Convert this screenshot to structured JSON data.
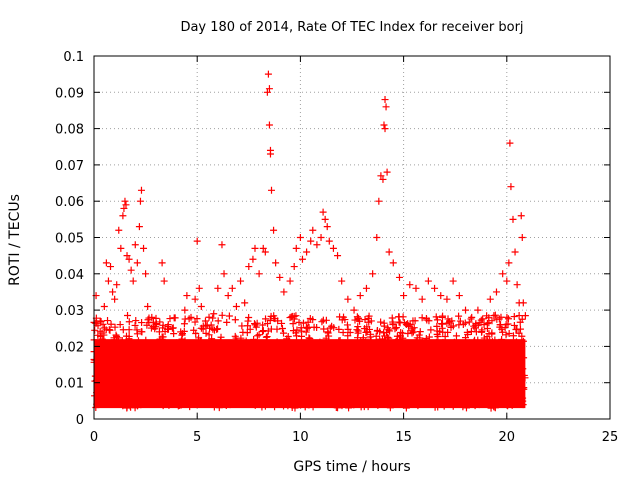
{
  "chart_data": {
    "type": "scatter",
    "title": "Day 180 of 2014, Rate Of TEC Index for receiver borj",
    "xlabel": "GPS time / hours",
    "ylabel": "ROTI / TECUs",
    "xlim": [
      0,
      25
    ],
    "ylim": [
      0,
      0.1
    ],
    "x_ticks": [
      0,
      5,
      10,
      15,
      20,
      25
    ],
    "x_tick_labels": [
      "0",
      "5",
      "10",
      "15",
      "20",
      "25"
    ],
    "y_ticks": [
      0,
      0.01,
      0.02,
      0.03,
      0.04,
      0.05,
      0.06,
      0.07,
      0.08,
      0.09,
      0.1
    ],
    "y_tick_labels": [
      "0",
      "0.01",
      "0.02",
      "0.03",
      "0.04",
      "0.05",
      "0.06",
      "0.07",
      "0.08",
      "0.09",
      "0.1"
    ],
    "grid": true,
    "marker": "+",
    "marker_color": "#ff0000",
    "series": [
      {
        "name": "ROTI",
        "points": [
          [
            0.1,
            0.034
          ],
          [
            0.15,
            0.012
          ],
          [
            0.2,
            0.018
          ],
          [
            0.3,
            0.027
          ],
          [
            0.4,
            0.022
          ],
          [
            0.5,
            0.031
          ],
          [
            0.6,
            0.043
          ],
          [
            0.7,
            0.038
          ],
          [
            0.8,
            0.042
          ],
          [
            0.9,
            0.035
          ],
          [
            1.0,
            0.033
          ],
          [
            1.1,
            0.037
          ],
          [
            1.2,
            0.052
          ],
          [
            1.3,
            0.047
          ],
          [
            1.4,
            0.056
          ],
          [
            1.45,
            0.058
          ],
          [
            1.5,
            0.06
          ],
          [
            1.55,
            0.059
          ],
          [
            1.6,
            0.045
          ],
          [
            1.7,
            0.044
          ],
          [
            1.8,
            0.041
          ],
          [
            1.9,
            0.038
          ],
          [
            2.0,
            0.048
          ],
          [
            2.1,
            0.043
          ],
          [
            2.2,
            0.053
          ],
          [
            2.25,
            0.06
          ],
          [
            2.3,
            0.063
          ],
          [
            2.4,
            0.047
          ],
          [
            2.5,
            0.04
          ],
          [
            2.6,
            0.031
          ],
          [
            2.8,
            0.028
          ],
          [
            3.0,
            0.026
          ],
          [
            3.2,
            0.022
          ],
          [
            3.3,
            0.043
          ],
          [
            3.4,
            0.038
          ],
          [
            3.6,
            0.026
          ],
          [
            3.8,
            0.025
          ],
          [
            4.0,
            0.021
          ],
          [
            4.2,
            0.024
          ],
          [
            4.4,
            0.03
          ],
          [
            4.5,
            0.034
          ],
          [
            4.7,
            0.028
          ],
          [
            4.9,
            0.033
          ],
          [
            5.0,
            0.049
          ],
          [
            5.1,
            0.036
          ],
          [
            5.2,
            0.031
          ],
          [
            5.4,
            0.027
          ],
          [
            5.6,
            0.025
          ],
          [
            5.8,
            0.029
          ],
          [
            6.0,
            0.036
          ],
          [
            6.2,
            0.048
          ],
          [
            6.3,
            0.04
          ],
          [
            6.5,
            0.034
          ],
          [
            6.7,
            0.036
          ],
          [
            6.9,
            0.031
          ],
          [
            7.1,
            0.038
          ],
          [
            7.3,
            0.032
          ],
          [
            7.5,
            0.042
          ],
          [
            7.7,
            0.044
          ],
          [
            7.8,
            0.047
          ],
          [
            8.0,
            0.04
          ],
          [
            8.2,
            0.047
          ],
          [
            8.3,
            0.046
          ],
          [
            8.4,
            0.09
          ],
          [
            8.45,
            0.095
          ],
          [
            8.5,
            0.091
          ],
          [
            8.5,
            0.081
          ],
          [
            8.55,
            0.074
          ],
          [
            8.55,
            0.073
          ],
          [
            8.6,
            0.063
          ],
          [
            8.7,
            0.052
          ],
          [
            8.8,
            0.043
          ],
          [
            9.0,
            0.039
          ],
          [
            9.2,
            0.035
          ],
          [
            9.5,
            0.038
          ],
          [
            9.7,
            0.042
          ],
          [
            9.8,
            0.047
          ],
          [
            10.0,
            0.05
          ],
          [
            10.1,
            0.044
          ],
          [
            10.3,
            0.046
          ],
          [
            10.5,
            0.049
          ],
          [
            10.6,
            0.052
          ],
          [
            10.8,
            0.048
          ],
          [
            11.0,
            0.05
          ],
          [
            11.1,
            0.057
          ],
          [
            11.2,
            0.055
          ],
          [
            11.3,
            0.053
          ],
          [
            11.4,
            0.049
          ],
          [
            11.6,
            0.047
          ],
          [
            11.8,
            0.045
          ],
          [
            12.0,
            0.038
          ],
          [
            12.3,
            0.033
          ],
          [
            12.6,
            0.03
          ],
          [
            12.9,
            0.034
          ],
          [
            13.2,
            0.036
          ],
          [
            13.5,
            0.04
          ],
          [
            13.7,
            0.05
          ],
          [
            13.8,
            0.06
          ],
          [
            13.9,
            0.067
          ],
          [
            14.0,
            0.066
          ],
          [
            14.05,
            0.081
          ],
          [
            14.1,
            0.08
          ],
          [
            14.1,
            0.088
          ],
          [
            14.15,
            0.086
          ],
          [
            14.2,
            0.068
          ],
          [
            14.3,
            0.046
          ],
          [
            14.5,
            0.043
          ],
          [
            14.8,
            0.039
          ],
          [
            15.0,
            0.034
          ],
          [
            15.3,
            0.037
          ],
          [
            15.6,
            0.036
          ],
          [
            15.9,
            0.033
          ],
          [
            16.2,
            0.038
          ],
          [
            16.5,
            0.036
          ],
          [
            16.8,
            0.034
          ],
          [
            17.1,
            0.033
          ],
          [
            17.4,
            0.038
          ],
          [
            17.7,
            0.034
          ],
          [
            18.0,
            0.03
          ],
          [
            18.3,
            0.028
          ],
          [
            18.6,
            0.03
          ],
          [
            18.9,
            0.026
          ],
          [
            19.2,
            0.033
          ],
          [
            19.5,
            0.035
          ],
          [
            19.8,
            0.04
          ],
          [
            20.0,
            0.038
          ],
          [
            20.1,
            0.043
          ],
          [
            20.15,
            0.076
          ],
          [
            20.2,
            0.064
          ],
          [
            20.3,
            0.055
          ],
          [
            20.4,
            0.046
          ],
          [
            20.5,
            0.037
          ],
          [
            20.6,
            0.032
          ],
          [
            20.7,
            0.056
          ],
          [
            20.75,
            0.05
          ],
          [
            20.8,
            0.032
          ],
          [
            20.85,
            0.012
          ]
        ]
      }
    ],
    "baseline_band": {
      "x_start": 0,
      "x_end": 20.9,
      "y_low": 0.003,
      "y_high": 0.022
    }
  }
}
